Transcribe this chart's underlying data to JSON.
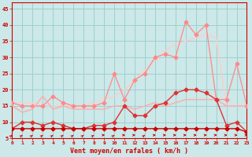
{
  "xlabel": "Vent moyen/en rafales ( km/h )",
  "background_color": "#cce8e8",
  "grid_color": "#99cccc",
  "x": [
    0,
    1,
    2,
    3,
    4,
    5,
    6,
    7,
    8,
    9,
    10,
    11,
    12,
    13,
    14,
    15,
    16,
    17,
    18,
    19,
    20,
    21,
    22,
    23
  ],
  "ylim": [
    5,
    47
  ],
  "xlim": [
    0,
    23
  ],
  "yticks": [
    5,
    10,
    15,
    20,
    25,
    30,
    35,
    40,
    45
  ],
  "line_flat": [
    8,
    8,
    8,
    8,
    8,
    8,
    8,
    8,
    8,
    8,
    8,
    8,
    8,
    8,
    8,
    8,
    8,
    8,
    8,
    8,
    8,
    8,
    8,
    7
  ],
  "line_med_red": [
    8,
    10,
    10,
    9,
    10,
    9,
    8,
    8,
    9,
    9,
    10,
    15,
    12,
    12,
    15,
    16,
    19,
    20,
    20,
    19,
    17,
    9,
    10,
    7
  ],
  "line_pale1": [
    15,
    13,
    14,
    18,
    14,
    15,
    14,
    14,
    14,
    14,
    15,
    15,
    14,
    15,
    16,
    15,
    16,
    17,
    17,
    17,
    17,
    15,
    15,
    15
  ],
  "line_spike": [
    16,
    15,
    15,
    15,
    18,
    16,
    15,
    15,
    15,
    16,
    25,
    17,
    23,
    25,
    30,
    31,
    30,
    41,
    37,
    40,
    17,
    17,
    28,
    15
  ],
  "line_smooth": [
    16,
    16,
    16,
    15,
    15,
    15,
    15,
    15,
    16,
    17,
    18,
    20,
    23,
    26,
    29,
    32,
    34,
    35,
    36,
    37,
    36,
    15,
    15,
    15
  ],
  "arrow_diag": [
    0,
    1,
    2,
    3,
    4,
    5,
    6,
    7,
    8,
    10,
    13
  ],
  "arrow_horiz": [
    9,
    11,
    12,
    14,
    15,
    16,
    17,
    18,
    19,
    20,
    21,
    22,
    23
  ],
  "color_dark_red": "#cc0000",
  "color_med_red": "#dd3333",
  "color_pale_pink": "#ffaaaa",
  "color_pink": "#ff8888",
  "color_light_pink": "#ffcccc"
}
